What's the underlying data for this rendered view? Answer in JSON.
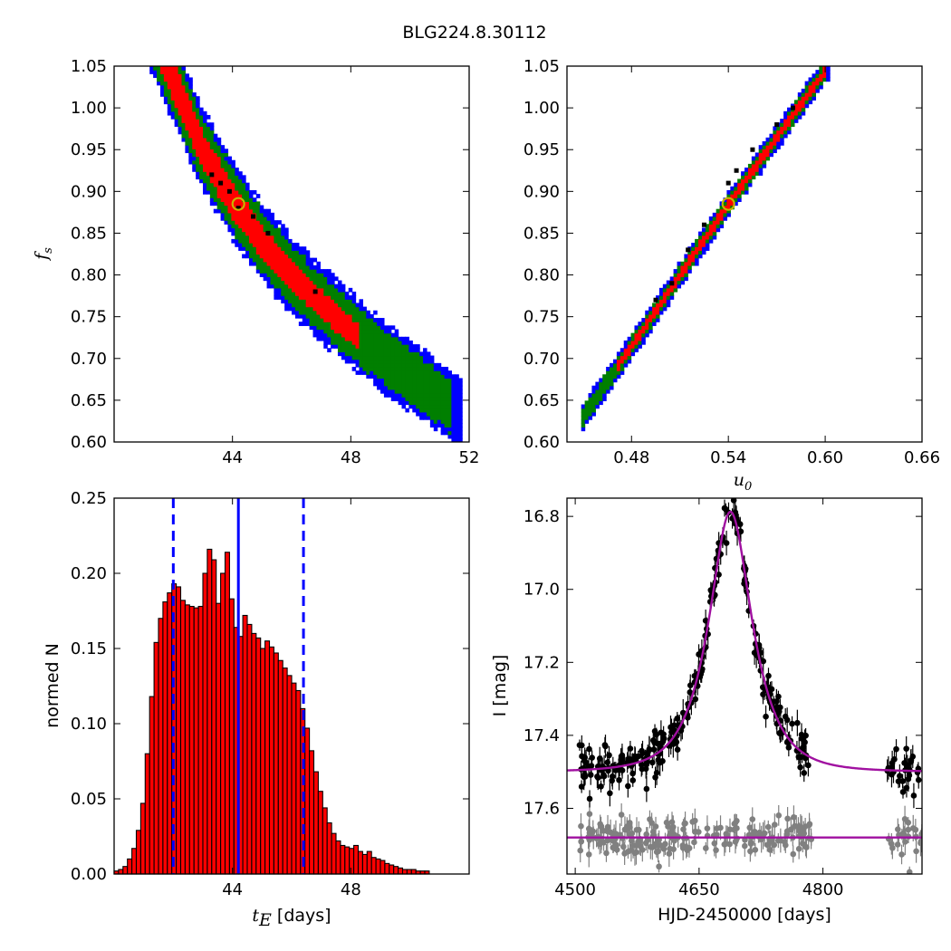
{
  "figure": {
    "title": "BLG224.8.30112"
  },
  "colors": {
    "red": "#ff0000",
    "green": "#007f00",
    "blue": "#0000ff",
    "black": "#000000",
    "gray": "#808080",
    "magenta": "#a010a0",
    "best": "#c8b400"
  },
  "chart_data": [
    {
      "id": "panel-fs-vs-tE",
      "type": "heatmap",
      "title": "",
      "xlabel": "",
      "ylabel": "f_s",
      "ylabel_main": "f",
      "ylabel_sub": "s",
      "xlim": [
        40.0,
        52.0
      ],
      "ylim": [
        0.6,
        1.05
      ],
      "x_ticks": [
        44,
        48,
        52
      ],
      "x_tick_labels": [
        "44",
        "48",
        "52"
      ],
      "y_ticks": [
        0.6,
        0.65,
        0.7,
        0.75,
        0.8,
        0.85,
        0.9,
        0.95,
        1.0,
        1.05
      ],
      "y_tick_labels": [
        "0.60",
        "0.65",
        "0.70",
        "0.75",
        "0.80",
        "0.85",
        "0.90",
        "0.95",
        "1.00",
        "1.05"
      ],
      "band": {
        "centerline": [
          [
            41.8,
            1.05
          ],
          [
            43.0,
            0.95
          ],
          [
            44.1,
            0.885
          ],
          [
            45.0,
            0.84
          ],
          [
            46.0,
            0.8
          ],
          [
            47.0,
            0.765
          ],
          [
            48.0,
            0.735
          ],
          [
            49.0,
            0.705
          ],
          [
            50.0,
            0.68
          ],
          [
            51.5,
            0.64
          ]
        ],
        "levels": [
          {
            "name": "blue",
            "halfwidth": [
              0.05,
              0.04
            ],
            "x_range": [
              40.3,
              51.7
            ]
          },
          {
            "name": "green",
            "halfwidth": [
              0.04,
              0.03
            ],
            "x_range": [
              40.4,
              51.4
            ]
          },
          {
            "name": "red",
            "halfwidth": [
              0.026,
              0.01
            ],
            "x_range": [
              40.5,
              48.3
            ]
          }
        ]
      },
      "black_points": [
        [
          43.3,
          0.92
        ],
        [
          43.6,
          0.91
        ],
        [
          43.9,
          0.9
        ],
        [
          44.2,
          0.88
        ],
        [
          44.7,
          0.87
        ],
        [
          45.2,
          0.85
        ],
        [
          46.8,
          0.78
        ]
      ],
      "best_fit": [
        44.2,
        0.885
      ]
    },
    {
      "id": "panel-fs-vs-u0",
      "type": "heatmap",
      "title": "",
      "xlabel": "u_0",
      "xlabel_main": "u",
      "xlabel_sub": "0",
      "ylabel": "",
      "xlim": [
        0.44,
        0.66
      ],
      "ylim": [
        0.6,
        1.05
      ],
      "x_ticks": [
        0.48,
        0.54,
        0.6,
        0.66
      ],
      "x_tick_labels": [
        "0.48",
        "0.54",
        "0.60",
        "0.66"
      ],
      "y_ticks": [
        0.6,
        0.65,
        0.7,
        0.75,
        0.8,
        0.85,
        0.9,
        0.95,
        1.0,
        1.05
      ],
      "y_tick_labels": [
        "0.60",
        "0.65",
        "0.70",
        "0.75",
        "0.80",
        "0.85",
        "0.90",
        "0.95",
        "1.00",
        "1.05"
      ],
      "band": {
        "centerline": [
          [
            0.45,
            0.63
          ],
          [
            0.48,
            0.715
          ],
          [
            0.51,
            0.8
          ],
          [
            0.54,
            0.885
          ],
          [
            0.57,
            0.965
          ],
          [
            0.6,
            1.045
          ]
        ],
        "levels": [
          {
            "name": "blue",
            "halfwidth": [
              0.016,
              0.014
            ],
            "x_range": [
              0.448,
              0.602
            ]
          },
          {
            "name": "green",
            "halfwidth": [
              0.011,
              0.01
            ],
            "x_range": [
              0.449,
              0.601
            ]
          },
          {
            "name": "red",
            "halfwidth": [
              0.006,
              0.006
            ],
            "x_range": [
              0.47,
              0.6
            ]
          }
        ]
      },
      "black_points": [
        [
          0.495,
          0.77
        ],
        [
          0.505,
          0.79
        ],
        [
          0.515,
          0.83
        ],
        [
          0.525,
          0.86
        ],
        [
          0.54,
          0.91
        ],
        [
          0.545,
          0.925
        ],
        [
          0.555,
          0.95
        ],
        [
          0.57,
          0.98
        ],
        [
          0.58,
          1.0
        ]
      ],
      "best_fit": [
        0.54,
        0.885
      ]
    },
    {
      "id": "panel-tE-histogram",
      "type": "bar",
      "title": "",
      "xlabel_main": "t",
      "xlabel_sub": "E",
      "xlabel_unit": "[days]",
      "xlabel": "t_E [days]",
      "ylabel": "normed N",
      "xlim": [
        40.0,
        52.0
      ],
      "ylim": [
        0.0,
        0.25
      ],
      "x_ticks": [
        44,
        48
      ],
      "x_tick_labels": [
        "44",
        "48"
      ],
      "y_ticks": [
        0.0,
        0.05,
        0.1,
        0.15,
        0.2,
        0.25
      ],
      "y_tick_labels": [
        "0.00",
        "0.05",
        "0.10",
        "0.15",
        "0.20",
        "0.25"
      ],
      "bin_start": 40.0,
      "bin_width": 0.15,
      "values": [
        0.002,
        0.003,
        0.005,
        0.01,
        0.017,
        0.029,
        0.047,
        0.08,
        0.118,
        0.154,
        0.17,
        0.181,
        0.187,
        0.193,
        0.191,
        0.182,
        0.179,
        0.178,
        0.177,
        0.178,
        0.2,
        0.216,
        0.209,
        0.18,
        0.2,
        0.214,
        0.183,
        0.164,
        0.158,
        0.172,
        0.166,
        0.16,
        0.157,
        0.15,
        0.155,
        0.151,
        0.147,
        0.142,
        0.137,
        0.132,
        0.127,
        0.122,
        0.11,
        0.097,
        0.082,
        0.068,
        0.055,
        0.044,
        0.034,
        0.027,
        0.022,
        0.019,
        0.018,
        0.017,
        0.019,
        0.015,
        0.013,
        0.015,
        0.011,
        0.01,
        0.009,
        0.007,
        0.006,
        0.005,
        0.004,
        0.003,
        0.003,
        0.003,
        0.002,
        0.002,
        0.002
      ],
      "median": 44.2,
      "interval": [
        42.0,
        46.4
      ]
    },
    {
      "id": "panel-lightcurve",
      "type": "scatter",
      "title": "",
      "xlabel": "HJD-2450000 [days]",
      "ylabel": "I [mag]",
      "xlim": [
        4490,
        4920
      ],
      "ylim": [
        17.78,
        16.75
      ],
      "x_ticks": [
        4500,
        4650,
        4800
      ],
      "x_tick_labels": [
        "4500",
        "4650",
        "4800"
      ],
      "y_ticks": [
        16.8,
        17.0,
        17.2,
        17.4,
        17.6
      ],
      "y_tick_labels": [
        "16.8",
        "17.0",
        "17.2",
        "17.4",
        "17.6"
      ],
      "model": {
        "t0": 4688,
        "tE": 44.2,
        "u0": 0.54,
        "fs": 0.885,
        "I_base": 17.5
      },
      "residual_baseline": 17.68,
      "observations": {
        "segments": [
          [
            4505,
            4786,
            260
          ],
          [
            4878,
            4920,
            28
          ]
        ],
        "scatter_mag": 0.03,
        "errorbar_mag": 0.025
      },
      "residuals": {
        "segments": [
          [
            4505,
            4786,
            200
          ],
          [
            4878,
            4920,
            24
          ]
        ],
        "scatter_mag": 0.025,
        "errorbar_mag": 0.025
      }
    }
  ]
}
